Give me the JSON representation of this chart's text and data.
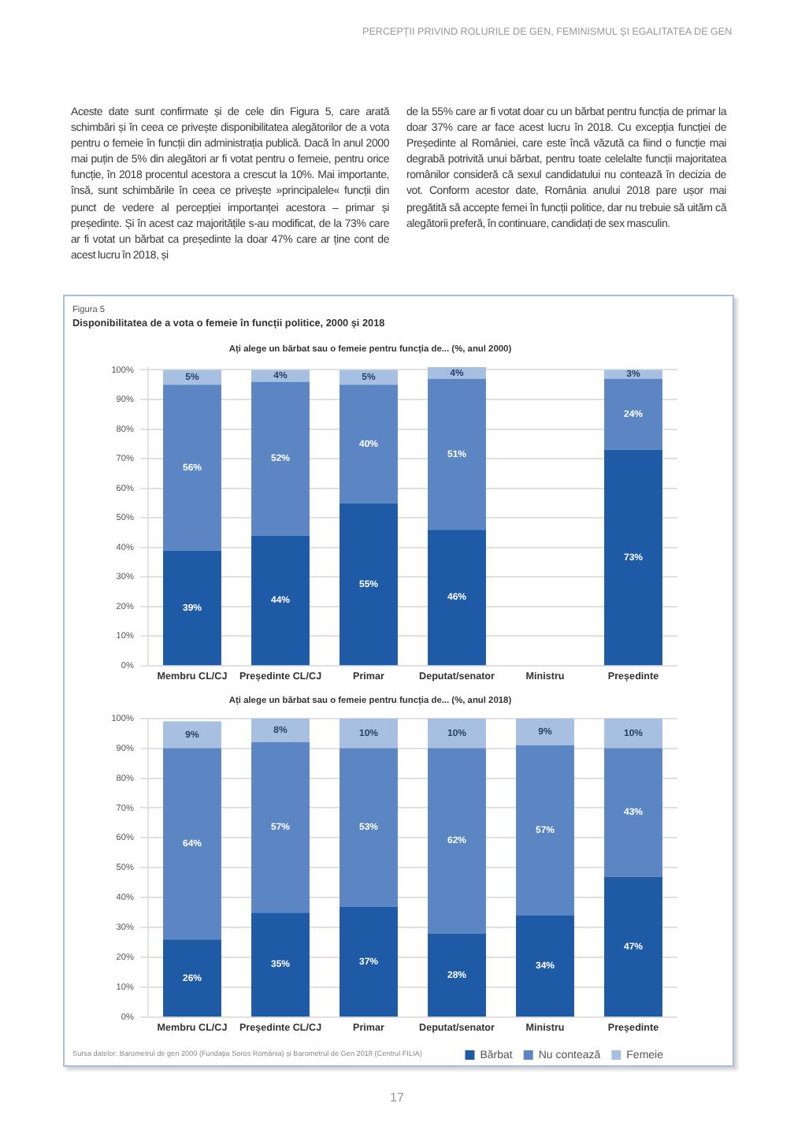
{
  "chart_data": [
    {
      "type": "bar",
      "title": "Ați alege un bărbat sau o femeie pentru funcția de... (%, anul 2000)",
      "categories": [
        "Membru CL/CJ",
        "Președinte CL/CJ",
        "Primar",
        "Deputat/senator",
        "Ministru",
        "Președinte"
      ],
      "stacked": true,
      "series": [
        {
          "color": "#1f5aa6",
          "values": [
            39,
            44,
            55,
            46,
            null,
            73
          ],
          "value_labels": [
            "39%",
            "44%",
            "55%",
            "46%",
            null,
            "73%"
          ]
        },
        {
          "color": "#5b86c3",
          "values": [
            56,
            52,
            40,
            51,
            null,
            24
          ],
          "value_labels": [
            "56%",
            "52%",
            "40%",
            "51%",
            null,
            "24%"
          ]
        },
        {
          "color": "#a7bfe0",
          "values": [
            5,
            4,
            5,
            4,
            null,
            3
          ],
          "value_labels": [
            "5%",
            "4%",
            "5%",
            "4%",
            null,
            "3%"
          ]
        }
      ],
      "ylim": [
        0,
        101
      ],
      "yticks": [
        {
          "value": 0,
          "label": "0%"
        },
        {
          "value": 10,
          "label": "10%"
        },
        {
          "value": 20,
          "label": "20%"
        },
        {
          "value": 30,
          "label": "30%"
        },
        {
          "value": 40,
          "label": "40%"
        },
        {
          "value": 50,
          "label": "50%"
        },
        {
          "value": 60,
          "label": "60%"
        },
        {
          "value": 70,
          "label": "70%"
        },
        {
          "value": 80,
          "label": "80%"
        },
        {
          "value": 90,
          "label": "90%"
        },
        {
          "value": 100,
          "label": "100%"
        }
      ],
      "grid": "y",
      "legend": false,
      "annotations": [
        "PERCEPȚII PRIVIND ROLURILE DE GEN, FEMINISMUL ȘI EGALITATEA DE GEN",
        "Aceste date sunt confirmate și de cele din Figura 5, care arată schimbări și în ceea ce privește disponibilitatea alegătorilor de a vota pentru o femeie în funcții din administrația publică. Dacă în anul 2000 mai puțin de 5% din alegători ar fi votat pentru o femeie, pentru orice funcție, în 2018 procentul acestora a crescut la 10%. Mai importante, însă, sunt schimbările în ceea ce privește »principalele« funcții din punct de vedere al percepției importanței acestora – primar și președinte. Și în acest caz majoritățile s-au modificat, de la 73% care ar fi votat un bărbat ca președinte la doar 47% care ar ține cont de acest lucru în 2018, și",
        "de la 55% care ar fi votat doar cu un bărbat pentru funcția de primar la doar 37% care ar face acest lucru în 2018. Cu excepția funcției de Președinte al României, care este încă văzută ca fiind o funcție mai degrabă potrivită unui bărbat, pentru toate celelalte funcții majoritatea românilor consideră că sexul candidatului nu contează în decizia de vot. Conform acestor date, România anului 2018 pare ușor mai pregătită să accepte femei în funcții politice, dar nu trebuie să uităm că alegătorii preferă, în continuare, candidați de sex masculin.",
        "Figura 5",
        "Disponibilitatea de a vota o femeie în funcții politice, 2000 și 2018"
      ]
    },
    {
      "type": "bar",
      "title": "Ați alege un bărbat sau o femeie pentru funcția de... (%, anul 2018)",
      "categories": [
        "Membru CL/CJ",
        "Președinte CL/CJ",
        "Primar",
        "Deputat/senator",
        "Ministru",
        "Președinte"
      ],
      "stacked": true,
      "series": [
        {
          "name": "Bărbat",
          "color": "#1f5aa6",
          "values": [
            26,
            35,
            37,
            28,
            34,
            47
          ],
          "value_labels": [
            "26%",
            "35%",
            "37%",
            "28%",
            "34%",
            "47%"
          ]
        },
        {
          "name": "Nu contează",
          "color": "#5b86c3",
          "values": [
            64,
            57,
            53,
            62,
            57,
            43
          ],
          "value_labels": [
            "64%",
            "57%",
            "53%",
            "62%",
            "57%",
            "43%"
          ]
        },
        {
          "name": "Femeie",
          "color": "#a7bfe0",
          "values": [
            9,
            8,
            10,
            10,
            9,
            10
          ],
          "value_labels": [
            "9%",
            "8%",
            "10%",
            "10%",
            "9%",
            "10%"
          ]
        }
      ],
      "ylim": [
        0,
        100
      ],
      "yticks": [
        {
          "value": 0,
          "label": "0%"
        },
        {
          "value": 10,
          "label": "10%"
        },
        {
          "value": 20,
          "label": "20%"
        },
        {
          "value": 30,
          "label": "30%"
        },
        {
          "value": 40,
          "label": "40%"
        },
        {
          "value": 50,
          "label": "50%"
        },
        {
          "value": 60,
          "label": "60%"
        },
        {
          "value": 70,
          "label": "70%"
        },
        {
          "value": 80,
          "label": "80%"
        },
        {
          "value": 90,
          "label": "90%"
        },
        {
          "value": 100,
          "label": "100%"
        }
      ],
      "grid": "y",
      "legend": "bottom right",
      "annotations": [
        "Sursa datelor: Barometrul de gen 2000 (Fundația Soros România) și Barometrul de Gen 2018 (Centrul FILIA)",
        "17"
      ]
    }
  ]
}
